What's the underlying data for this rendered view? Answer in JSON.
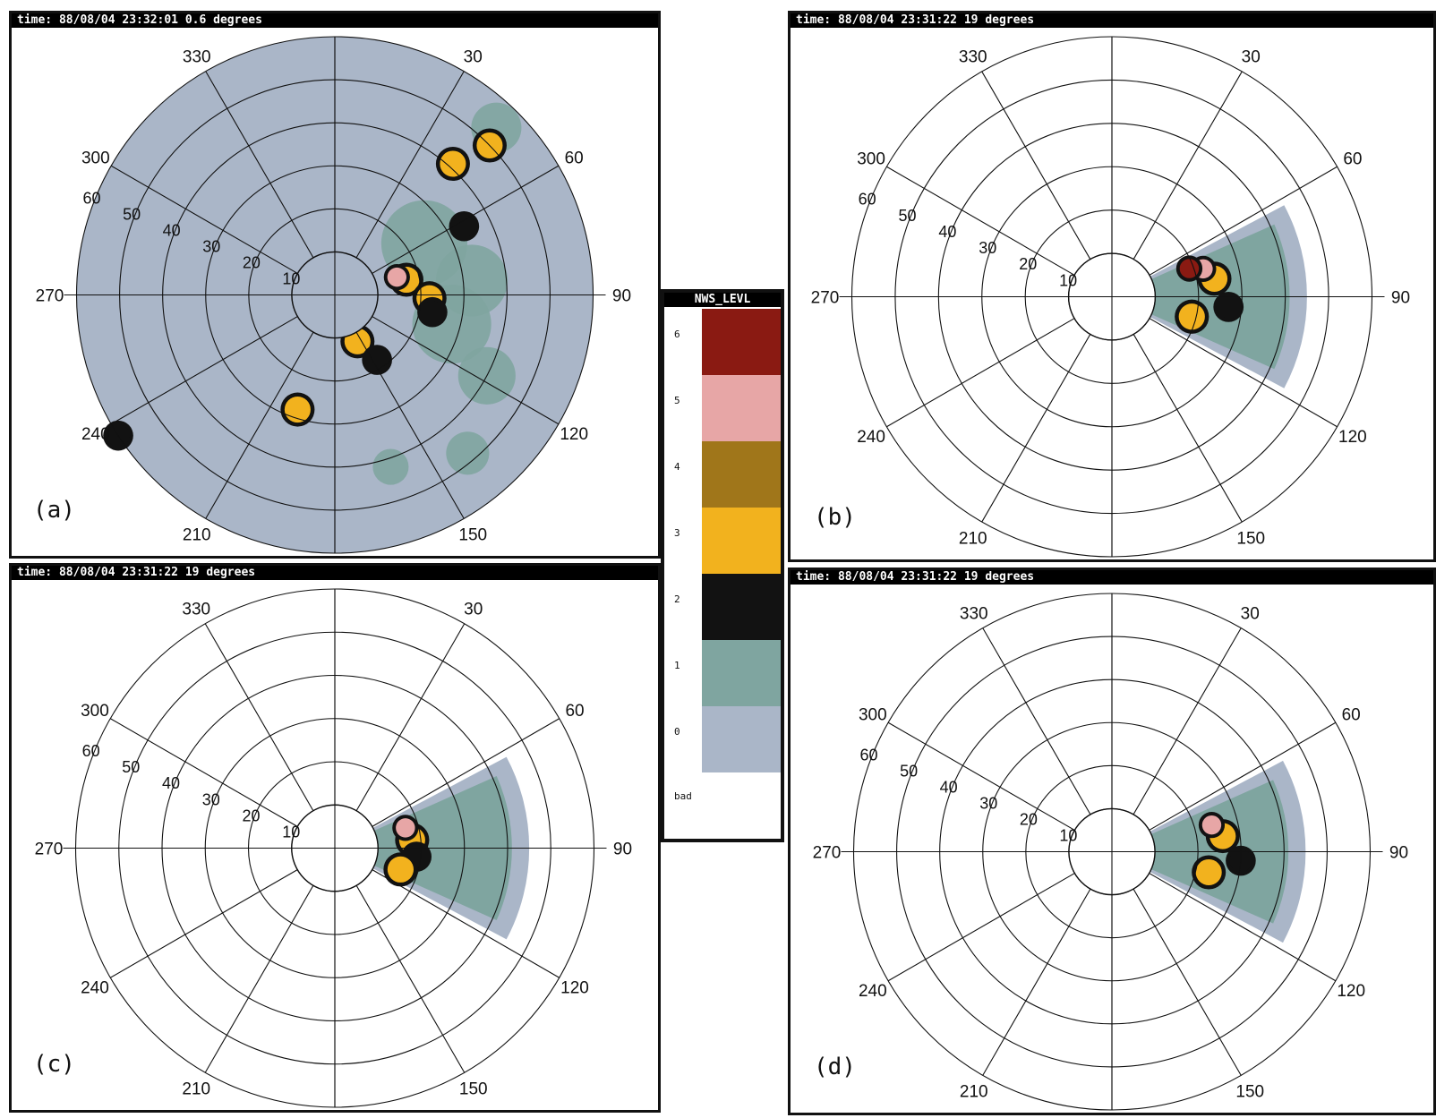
{
  "chart_data": {
    "type": "other",
    "description_type": "polar radar PPI displays",
    "colors": {
      "level_0": "#aab6c8",
      "level_1": "#7fa5a0",
      "level_2": "#121212",
      "level_3": "#f2b21e",
      "level_4": "#a0761a",
      "level_5": "#e7a6a6",
      "level_6": "#8a1a12"
    },
    "panels": [
      {
        "id": "a",
        "tag": "(a)",
        "title": "time:  88/08/04 23:32:01 0.6 degrees",
        "azimuth_labels": [
          "30",
          "60",
          "90",
          "120",
          "150",
          "210",
          "240",
          "270",
          "300",
          "330"
        ],
        "range_rings": [
          10,
          20,
          30,
          40,
          50,
          60
        ],
        "range_labels": [
          "10",
          "20",
          "30",
          "40",
          "50",
          "60"
        ],
        "coverage": "full",
        "cells": [
          {
            "az": 78,
            "r": 17,
            "level": 3
          },
          {
            "az": 74,
            "r": 15,
            "level": 5
          },
          {
            "az": 92,
            "r": 22,
            "level": 3
          },
          {
            "az": 100,
            "r": 23,
            "level": 2
          },
          {
            "az": 46,
            "r": 50,
            "level": 3
          },
          {
            "az": 42,
            "r": 41,
            "level": 3
          },
          {
            "az": 62,
            "r": 34,
            "level": 2
          },
          {
            "az": 154,
            "r": 12,
            "level": 3
          },
          {
            "az": 147,
            "r": 18,
            "level": 2
          },
          {
            "az": 198,
            "r": 28,
            "level": 3
          },
          {
            "az": 237,
            "r": 60,
            "level": 2
          }
        ]
      },
      {
        "id": "b",
        "tag": "(b)",
        "title": "time:  88/08/04 23:31:22 19 degrees",
        "azimuth_labels": [
          "30",
          "60",
          "90",
          "120",
          "150",
          "210",
          "240",
          "270",
          "300",
          "330"
        ],
        "range_rings": [
          10,
          20,
          30,
          40,
          50,
          60
        ],
        "range_labels": [
          "10",
          "20",
          "30",
          "40",
          "50",
          "60"
        ],
        "coverage": "sector",
        "sector_az": [
          62,
          118
        ],
        "sector_range": [
          0,
          45
        ],
        "cells": [
          {
            "az": 80,
            "r": 24,
            "level": 3
          },
          {
            "az": 73,
            "r": 22,
            "level": 5
          },
          {
            "az": 70,
            "r": 19,
            "level": 6
          },
          {
            "az": 95,
            "r": 27,
            "level": 2
          },
          {
            "az": 104,
            "r": 19,
            "level": 3
          }
        ]
      },
      {
        "id": "c",
        "tag": "(c)",
        "title": "time:  88/08/04 23:31:22 19 degrees",
        "azimuth_labels": [
          "30",
          "60",
          "90",
          "120",
          "150",
          "210",
          "240",
          "270",
          "300",
          "330"
        ],
        "range_rings": [
          10,
          20,
          30,
          40,
          50,
          60
        ],
        "range_labels": [
          "10",
          "20",
          "30",
          "40",
          "50",
          "60"
        ],
        "coverage": "sector",
        "sector_az": [
          62,
          118
        ],
        "sector_range": [
          0,
          45
        ],
        "cells": [
          {
            "az": 84,
            "r": 18,
            "level": 3
          },
          {
            "az": 74,
            "r": 17,
            "level": 5
          },
          {
            "az": 96,
            "r": 19,
            "level": 2
          },
          {
            "az": 108,
            "r": 16,
            "level": 3
          }
        ]
      },
      {
        "id": "d",
        "tag": "(d)",
        "title": "time:  88/08/04 23:31:22 19 degrees",
        "azimuth_labels": [
          "30",
          "60",
          "90",
          "120",
          "150",
          "210",
          "240",
          "270",
          "300",
          "330"
        ],
        "range_rings": [
          10,
          20,
          30,
          40,
          50,
          60
        ],
        "range_labels": [
          "10",
          "20",
          "30",
          "40",
          "50",
          "60"
        ],
        "coverage": "sector",
        "sector_az": [
          62,
          118
        ],
        "sector_range": [
          0,
          45
        ],
        "cells": [
          {
            "az": 82,
            "r": 26,
            "level": 3
          },
          {
            "az": 75,
            "r": 24,
            "level": 5
          },
          {
            "az": 94,
            "r": 30,
            "level": 2
          },
          {
            "az": 102,
            "r": 23,
            "level": 3
          }
        ]
      }
    ],
    "legend": {
      "title": "NWS_LEVL",
      "levels": [
        "6",
        "5",
        "4",
        "3",
        "2",
        "1",
        "0"
      ],
      "bad_label": "bad"
    }
  }
}
